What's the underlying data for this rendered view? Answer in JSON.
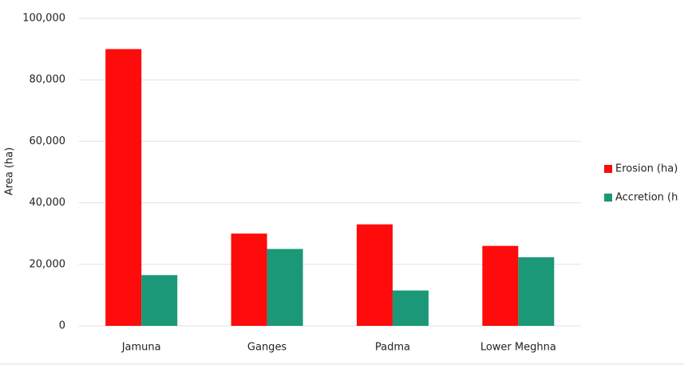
{
  "chart_data": {
    "type": "bar",
    "y_label": "Area (ha)",
    "categories": [
      "Jamuna",
      "Ganges",
      "Padma",
      "Lower Meghna"
    ],
    "series": [
      {
        "name": "Erosion (ha)",
        "color": "#fe0b0b",
        "values": [
          90000,
          30000,
          33000,
          26000
        ]
      },
      {
        "name": "Accretion (h",
        "color": "#1a9877",
        "values": [
          16500,
          25000,
          11500,
          22300
        ]
      }
    ],
    "ylim": [
      0,
      100000
    ],
    "yticks": [
      0,
      {
        "value": 20000,
        "label": "20,000"
      },
      {
        "value": 40000,
        "label": "40,000"
      },
      {
        "value": 60000,
        "label": "60,000"
      },
      {
        "value": 80000,
        "label": "80,000"
      },
      {
        "value": 100000,
        "label": "100,000"
      }
    ],
    "grid": true,
    "legend": "right"
  }
}
